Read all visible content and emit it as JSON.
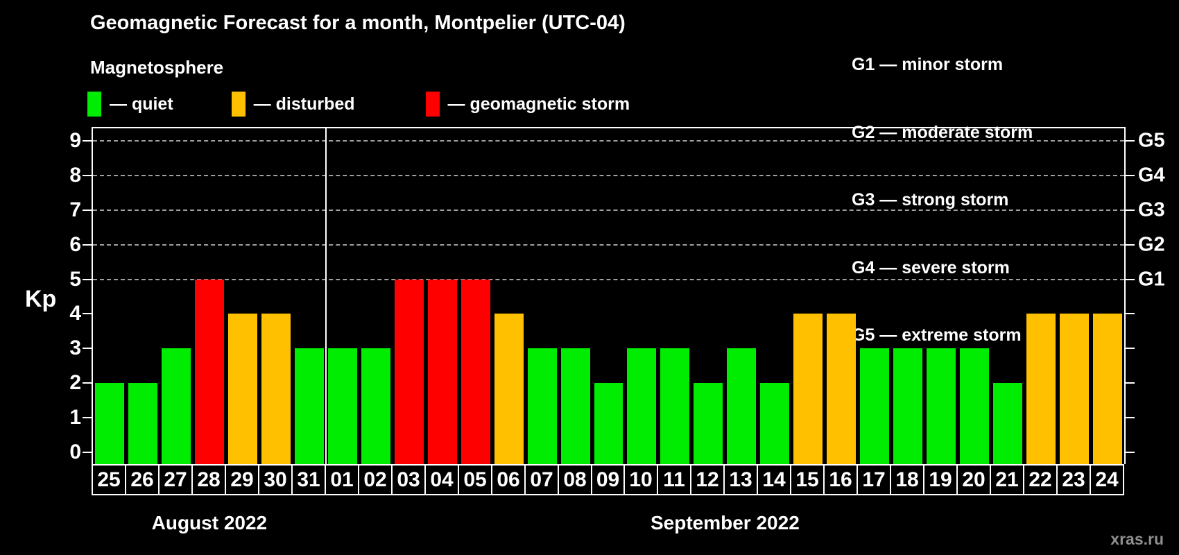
{
  "header": {
    "title": "Geomagnetic Forecast for a month, Montpelier (UTC-04)",
    "subtitle": "Magnetosphere"
  },
  "legend": [
    {
      "key": "quiet",
      "label": "— quiet"
    },
    {
      "key": "disturbed",
      "label": "— disturbed"
    },
    {
      "key": "storm",
      "label": "— geomagnetic storm"
    }
  ],
  "g_legend": [
    "G1 — minor storm",
    "G2 — moderate storm",
    "G3 — strong storm",
    "G4 — severe storm",
    "G5 — extreme storm"
  ],
  "watermark": "xras.ru",
  "colors": {
    "quiet": "#00ec00",
    "disturbed": "#ffc000",
    "storm": "#ff0000",
    "grid": "#a0a0a0",
    "axis": "#ffffff"
  },
  "chart_data": {
    "type": "bar",
    "title": "Geomagnetic Forecast for a month, Montpelier (UTC-04)",
    "ylabel": "Kp",
    "ylim": [
      0,
      9
    ],
    "yticks": [
      "0",
      "1",
      "2",
      "3",
      "4",
      "5",
      "6",
      "7",
      "8",
      "9"
    ],
    "grid_levels": [
      5,
      6,
      7,
      8,
      9
    ],
    "right_axis_labels": [
      {
        "kp": 5,
        "label": "G1"
      },
      {
        "kp": 6,
        "label": "G2"
      },
      {
        "kp": 7,
        "label": "G3"
      },
      {
        "kp": 8,
        "label": "G4"
      },
      {
        "kp": 9,
        "label": "G5"
      }
    ],
    "months": [
      {
        "label": "August 2022",
        "days": 7
      },
      {
        "label": "September 2022",
        "days": 24
      }
    ],
    "categories": [
      "25",
      "26",
      "27",
      "28",
      "29",
      "30",
      "31",
      "01",
      "02",
      "03",
      "04",
      "05",
      "06",
      "07",
      "08",
      "09",
      "10",
      "11",
      "12",
      "13",
      "14",
      "15",
      "16",
      "17",
      "18",
      "19",
      "20",
      "21",
      "22",
      "23",
      "24"
    ],
    "values": [
      2,
      2,
      3,
      5,
      4,
      4,
      3,
      3,
      3,
      5,
      5,
      5,
      4,
      3,
      3,
      2,
      3,
      3,
      2,
      3,
      2,
      4,
      4,
      3,
      3,
      3,
      3,
      2,
      4,
      4,
      4
    ],
    "statuses": [
      "quiet",
      "quiet",
      "quiet",
      "storm",
      "disturbed",
      "disturbed",
      "quiet",
      "quiet",
      "quiet",
      "storm",
      "storm",
      "storm",
      "disturbed",
      "quiet",
      "quiet",
      "quiet",
      "quiet",
      "quiet",
      "quiet",
      "quiet",
      "quiet",
      "disturbed",
      "disturbed",
      "quiet",
      "quiet",
      "quiet",
      "quiet",
      "quiet",
      "disturbed",
      "disturbed",
      "disturbed"
    ]
  }
}
